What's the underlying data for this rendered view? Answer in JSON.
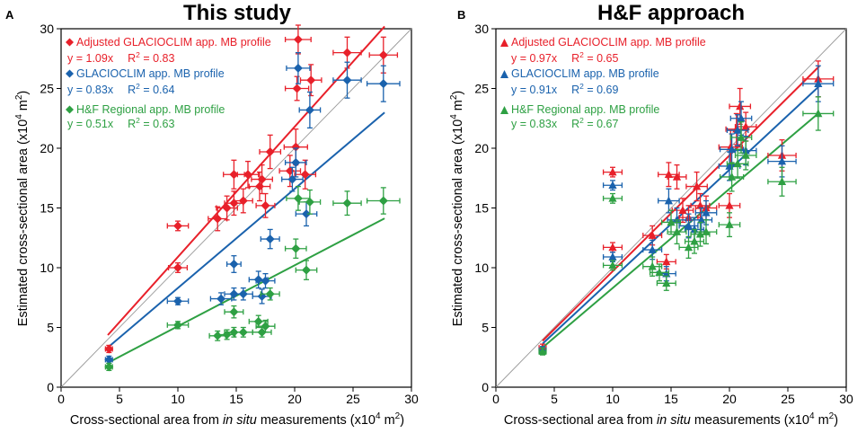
{
  "figure": {
    "panels": [
      {
        "label": "A",
        "title": "This study",
        "ylabel_main": "Estimated cross-sectional area (x10",
        "xlabel_pre": "Cross-sectional area from ",
        "xlabel_italic": "in situ",
        "xlabel_post": " measurements (x10",
        "unit_exp": "4",
        "unit_m": " m",
        "unit_sq": "2",
        "unit_close": ")"
      },
      {
        "label": "B",
        "title": "H&F approach",
        "ylabel_main": "Estimated cross-sectional area (x10",
        "xlabel_pre": "Cross-sectional area from ",
        "xlabel_italic": "in situ",
        "xlabel_post": " measurements (x10",
        "unit_exp": "4",
        "unit_m": " m",
        "unit_sq": "2",
        "unit_close": ")"
      }
    ]
  },
  "chart_data": [
    {
      "type": "scatter",
      "title": "This study",
      "panel_label": "A",
      "xlabel": "Cross-sectional area from in situ measurements (x10^4 m^2)",
      "ylabel": "Estimated cross-sectional area (x10^4 m^2)",
      "xlim": [
        0,
        30
      ],
      "ylim": [
        0,
        30
      ],
      "xticks": [
        0,
        5,
        10,
        15,
        20,
        25,
        30
      ],
      "yticks": [
        0,
        5,
        10,
        15,
        20,
        25,
        30
      ],
      "marker": "diamond",
      "legend_position": "top-left",
      "series": [
        {
          "name": "Adjusted GLACIOCLIM app. MB profile",
          "equation": "y = 1.09x",
          "r2_text": "R",
          "r2_value": " = 0.83",
          "slope": 1.09,
          "color": "#e8202a",
          "points": [
            {
              "x": 4.1,
              "y": 3.2,
              "xe": 0.3,
              "ye": 0.3
            },
            {
              "x": 10.0,
              "y": 10.0,
              "xe": 0.8,
              "ye": 0.4
            },
            {
              "x": 10.0,
              "y": 13.5,
              "xe": 0.9,
              "ye": 0.4
            },
            {
              "x": 13.4,
              "y": 14.1,
              "xe": 0.8,
              "ye": 1.0
            },
            {
              "x": 14.2,
              "y": 15.0,
              "xe": 0.9,
              "ye": 1.0
            },
            {
              "x": 14.8,
              "y": 15.4,
              "xe": 0.8,
              "ye": 1.0
            },
            {
              "x": 14.8,
              "y": 17.8,
              "xe": 0.9,
              "ye": 1.2
            },
            {
              "x": 15.6,
              "y": 15.6,
              "xe": 0.8,
              "ye": 1.0
            },
            {
              "x": 16.0,
              "y": 17.8,
              "xe": 0.9,
              "ye": 1.1
            },
            {
              "x": 17.0,
              "y": 16.8,
              "xe": 0.9,
              "ye": 1.2
            },
            {
              "x": 17.2,
              "y": 17.4,
              "xe": 0.9,
              "ye": 1.2
            },
            {
              "x": 17.5,
              "y": 15.2,
              "xe": 0.8,
              "ye": 1.0
            },
            {
              "x": 17.9,
              "y": 19.7,
              "xe": 0.9,
              "ye": 1.4
            },
            {
              "x": 19.6,
              "y": 18.1,
              "xe": 0.9,
              "ye": 1.3
            },
            {
              "x": 20.1,
              "y": 20.1,
              "xe": 1.0,
              "ye": 1.5
            },
            {
              "x": 20.2,
              "y": 25.0,
              "xe": 1.0,
              "ye": 1.0
            },
            {
              "x": 20.3,
              "y": 29.1,
              "xe": 1.1,
              "ye": 1.2
            },
            {
              "x": 20.9,
              "y": 17.8,
              "xe": 0.9,
              "ye": 1.2
            },
            {
              "x": 21.4,
              "y": 25.7,
              "xe": 0.9,
              "ye": 1.3
            },
            {
              "x": 24.5,
              "y": 28.0,
              "xe": 1.2,
              "ye": 1.3
            },
            {
              "x": 27.6,
              "y": 27.8,
              "xe": 1.2,
              "ye": 1.5
            }
          ]
        },
        {
          "name": "GLACIOCLIM app. MB profile",
          "equation": "y = 0.83x",
          "r2_text": "R",
          "r2_value": " = 0.64",
          "slope": 0.83,
          "color": "#1a62ad",
          "points": [
            {
              "x": 4.1,
              "y": 2.3,
              "xe": 0.3,
              "ye": 0.3
            },
            {
              "x": 10.0,
              "y": 7.2,
              "xe": 0.9,
              "ye": 0.3
            },
            {
              "x": 13.7,
              "y": 7.4,
              "xe": 0.9,
              "ye": 0.5
            },
            {
              "x": 14.8,
              "y": 10.3,
              "xe": 0.6,
              "ye": 0.7
            },
            {
              "x": 14.8,
              "y": 7.8,
              "xe": 0.8,
              "ye": 0.5
            },
            {
              "x": 15.6,
              "y": 7.8,
              "xe": 0.8,
              "ye": 0.5
            },
            {
              "x": 16.9,
              "y": 9.0,
              "xe": 0.8,
              "ye": 0.7
            },
            {
              "x": 17.2,
              "y": 7.6,
              "xe": 0.8,
              "ye": 0.6
            },
            {
              "x": 17.5,
              "y": 8.9,
              "xe": 0.8,
              "ye": 0.6
            },
            {
              "x": 17.9,
              "y": 12.4,
              "xe": 0.8,
              "ye": 0.8
            },
            {
              "x": 19.8,
              "y": 17.4,
              "xe": 0.9,
              "ye": 1.0
            },
            {
              "x": 20.1,
              "y": 18.8,
              "xe": 0.9,
              "ye": 1.2
            },
            {
              "x": 20.3,
              "y": 26.7,
              "xe": 1.0,
              "ye": 1.3
            },
            {
              "x": 21.0,
              "y": 14.5,
              "xe": 0.9,
              "ye": 1.0
            },
            {
              "x": 21.3,
              "y": 23.2,
              "xe": 0.9,
              "ye": 1.5
            },
            {
              "x": 24.5,
              "y": 25.7,
              "xe": 1.2,
              "ye": 1.5
            },
            {
              "x": 27.6,
              "y": 25.4,
              "xe": 1.4,
              "ye": 1.5
            }
          ]
        },
        {
          "name": "H&F Regional app. MB profile",
          "equation": "y = 0.51x",
          "r2_text": "R",
          "r2_value": " = 0.63",
          "slope": 0.51,
          "color": "#2ea043",
          "points": [
            {
              "x": 4.1,
              "y": 1.7,
              "xe": 0.3,
              "ye": 0.3
            },
            {
              "x": 10.0,
              "y": 5.2,
              "xe": 0.9,
              "ye": 0.3
            },
            {
              "x": 13.4,
              "y": 4.3,
              "xe": 0.7,
              "ye": 0.4
            },
            {
              "x": 14.2,
              "y": 4.4,
              "xe": 0.7,
              "ye": 0.4
            },
            {
              "x": 14.8,
              "y": 6.3,
              "xe": 0.8,
              "ye": 0.5
            },
            {
              "x": 14.8,
              "y": 4.6,
              "xe": 0.8,
              "ye": 0.4
            },
            {
              "x": 15.6,
              "y": 4.6,
              "xe": 0.8,
              "ye": 0.4
            },
            {
              "x": 16.9,
              "y": 5.5,
              "xe": 0.8,
              "ye": 0.5
            },
            {
              "x": 17.2,
              "y": 4.6,
              "xe": 0.8,
              "ye": 0.4
            },
            {
              "x": 17.5,
              "y": 5.1,
              "xe": 0.8,
              "ye": 0.5
            },
            {
              "x": 17.9,
              "y": 7.8,
              "xe": 0.8,
              "ye": 0.5
            },
            {
              "x": 20.1,
              "y": 11.6,
              "xe": 0.9,
              "ye": 0.8
            },
            {
              "x": 20.3,
              "y": 15.8,
              "xe": 1.0,
              "ye": 1.0
            },
            {
              "x": 21.0,
              "y": 9.8,
              "xe": 0.9,
              "ye": 0.8
            },
            {
              "x": 21.3,
              "y": 15.5,
              "xe": 0.9,
              "ye": 1.0
            },
            {
              "x": 24.5,
              "y": 15.4,
              "xe": 1.2,
              "ye": 1.0
            },
            {
              "x": 27.6,
              "y": 15.6,
              "xe": 1.4,
              "ye": 1.1
            }
          ]
        }
      ]
    },
    {
      "type": "scatter",
      "title": "H&F approach",
      "panel_label": "B",
      "xlabel": "Cross-sectional area from in situ measurements (x10^4 m^2)",
      "ylabel": "Estimated cross-sectional area (x10^4 m^2)",
      "xlim": [
        0,
        30
      ],
      "ylim": [
        0,
        30
      ],
      "xticks": [
        0,
        5,
        10,
        15,
        20,
        25,
        30
      ],
      "yticks": [
        0,
        5,
        10,
        15,
        20,
        25,
        30
      ],
      "marker": "triangle",
      "legend_position": "top-left",
      "series": [
        {
          "name": "Adjusted GLACIOCLIM app. MB profile",
          "equation": "y = 0.97x",
          "r2_text": "R",
          "r2_value": " = 0.65",
          "slope": 0.97,
          "color": "#e8202a",
          "points": [
            {
              "x": 4.0,
              "y": 3.3,
              "xe": 0.3,
              "ye": 0.3
            },
            {
              "x": 10.0,
              "y": 18.0,
              "xe": 0.8,
              "ye": 0.4
            },
            {
              "x": 10.0,
              "y": 11.7,
              "xe": 0.8,
              "ye": 0.4
            },
            {
              "x": 13.4,
              "y": 12.7,
              "xe": 0.8,
              "ye": 0.8
            },
            {
              "x": 14.6,
              "y": 10.5,
              "xe": 0.8,
              "ye": 0.6
            },
            {
              "x": 14.8,
              "y": 17.8,
              "xe": 0.9,
              "ye": 1.0
            },
            {
              "x": 15.5,
              "y": 17.6,
              "xe": 0.8,
              "ye": 1.0
            },
            {
              "x": 16.0,
              "y": 14.8,
              "xe": 0.9,
              "ye": 1.0
            },
            {
              "x": 16.5,
              "y": 14.2,
              "xe": 0.8,
              "ye": 1.0
            },
            {
              "x": 17.2,
              "y": 16.8,
              "xe": 0.9,
              "ye": 1.2
            },
            {
              "x": 17.5,
              "y": 15.2,
              "xe": 0.8,
              "ye": 1.0
            },
            {
              "x": 18.0,
              "y": 15.0,
              "xe": 0.9,
              "ye": 1.0
            },
            {
              "x": 20.0,
              "y": 15.2,
              "xe": 0.9,
              "ye": 1.0
            },
            {
              "x": 20.1,
              "y": 20.1,
              "xe": 1.0,
              "ye": 1.4
            },
            {
              "x": 20.6,
              "y": 21.6,
              "xe": 0.9,
              "ye": 1.3
            },
            {
              "x": 20.9,
              "y": 23.5,
              "xe": 0.9,
              "ye": 1.5
            },
            {
              "x": 21.4,
              "y": 21.8,
              "xe": 0.9,
              "ye": 1.2
            },
            {
              "x": 24.5,
              "y": 19.4,
              "xe": 1.2,
              "ye": 1.3
            },
            {
              "x": 27.6,
              "y": 25.8,
              "xe": 1.3,
              "ye": 1.5
            }
          ]
        },
        {
          "name": "GLACIOCLIM app. MB profile",
          "equation": "y = 0.91x",
          "r2_text": "R",
          "r2_value": " = 0.69",
          "slope": 0.91,
          "color": "#1a62ad",
          "points": [
            {
              "x": 4.0,
              "y": 3.1,
              "xe": 0.3,
              "ye": 0.3
            },
            {
              "x": 10.0,
              "y": 16.9,
              "xe": 0.8,
              "ye": 0.4
            },
            {
              "x": 10.0,
              "y": 10.9,
              "xe": 0.8,
              "ye": 0.4
            },
            {
              "x": 13.4,
              "y": 11.5,
              "xe": 0.8,
              "ye": 0.8
            },
            {
              "x": 14.6,
              "y": 9.5,
              "xe": 0.8,
              "ye": 0.6
            },
            {
              "x": 14.8,
              "y": 15.6,
              "xe": 0.9,
              "ye": 1.0
            },
            {
              "x": 15.5,
              "y": 14.0,
              "xe": 0.8,
              "ye": 1.0
            },
            {
              "x": 16.5,
              "y": 13.5,
              "xe": 0.8,
              "ye": 1.0
            },
            {
              "x": 17.0,
              "y": 13.2,
              "xe": 0.8,
              "ye": 1.0
            },
            {
              "x": 17.6,
              "y": 14.0,
              "xe": 0.9,
              "ye": 1.0
            },
            {
              "x": 18.0,
              "y": 14.6,
              "xe": 0.9,
              "ye": 1.0
            },
            {
              "x": 20.0,
              "y": 18.5,
              "xe": 0.9,
              "ye": 1.2
            },
            {
              "x": 20.2,
              "y": 19.9,
              "xe": 1.0,
              "ye": 1.3
            },
            {
              "x": 20.7,
              "y": 21.5,
              "xe": 0.9,
              "ye": 1.3
            },
            {
              "x": 21.0,
              "y": 22.5,
              "xe": 0.9,
              "ye": 1.4
            },
            {
              "x": 21.4,
              "y": 19.8,
              "xe": 0.9,
              "ye": 1.2
            },
            {
              "x": 24.5,
              "y": 18.9,
              "xe": 1.2,
              "ye": 1.3
            },
            {
              "x": 27.6,
              "y": 25.4,
              "xe": 1.3,
              "ye": 1.5
            }
          ]
        },
        {
          "name": "H&F Regional app. MB profile",
          "equation": "y = 0.83x",
          "r2_text": "R",
          "r2_value": " = 0.67",
          "slope": 0.83,
          "color": "#2ea043",
          "points": [
            {
              "x": 4.0,
              "y": 3.0,
              "xe": 0.3,
              "ye": 0.3
            },
            {
              "x": 10.0,
              "y": 15.8,
              "xe": 0.8,
              "ye": 0.4
            },
            {
              "x": 10.0,
              "y": 10.2,
              "xe": 0.8,
              "ye": 0.4
            },
            {
              "x": 13.4,
              "y": 10.1,
              "xe": 0.8,
              "ye": 0.8
            },
            {
              "x": 14.0,
              "y": 9.6,
              "xe": 0.8,
              "ye": 0.7
            },
            {
              "x": 14.6,
              "y": 8.7,
              "xe": 0.8,
              "ye": 0.6
            },
            {
              "x": 15.0,
              "y": 13.8,
              "xe": 0.8,
              "ye": 1.0
            },
            {
              "x": 15.5,
              "y": 13.0,
              "xe": 0.8,
              "ye": 1.0
            },
            {
              "x": 16.5,
              "y": 11.7,
              "xe": 0.8,
              "ye": 0.9
            },
            {
              "x": 17.0,
              "y": 12.2,
              "xe": 0.8,
              "ye": 1.0
            },
            {
              "x": 17.5,
              "y": 12.8,
              "xe": 0.8,
              "ye": 1.0
            },
            {
              "x": 18.0,
              "y": 13.0,
              "xe": 0.9,
              "ye": 1.0
            },
            {
              "x": 20.0,
              "y": 13.6,
              "xe": 0.9,
              "ye": 1.0
            },
            {
              "x": 20.2,
              "y": 17.6,
              "xe": 1.0,
              "ye": 1.2
            },
            {
              "x": 20.7,
              "y": 18.7,
              "xe": 0.9,
              "ye": 1.2
            },
            {
              "x": 21.0,
              "y": 20.9,
              "xe": 0.9,
              "ye": 1.3
            },
            {
              "x": 21.4,
              "y": 19.4,
              "xe": 0.9,
              "ye": 1.2
            },
            {
              "x": 24.5,
              "y": 17.2,
              "xe": 1.2,
              "ye": 1.2
            },
            {
              "x": 27.6,
              "y": 22.9,
              "xe": 1.3,
              "ye": 1.4
            }
          ]
        }
      ]
    }
  ]
}
